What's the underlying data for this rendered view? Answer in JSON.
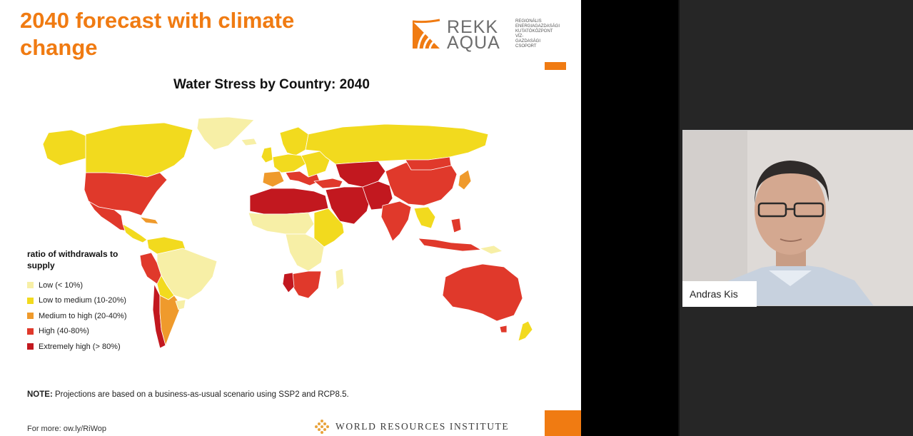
{
  "slide": {
    "title_line1": "2040 forecast with climate",
    "title_line2": "change",
    "logo": {
      "word1": "REKK",
      "word2": "AQUA",
      "small": [
        "Regionális",
        "Energiagazdasági",
        "Kutatóközpont",
        "Víz-",
        "gazdasági",
        "Csoport"
      ]
    },
    "map_title": "Water Stress by Country: 2040",
    "legend": {
      "title": "ratio of withdrawals to supply",
      "items": [
        {
          "label": "Low (< 10%)",
          "color": "#f7efa6"
        },
        {
          "label": "Low to medium (10-20%)",
          "color": "#f2da1e"
        },
        {
          "label": "Medium to high (20-40%)",
          "color": "#ef9a2c"
        },
        {
          "label": "High (40-80%)",
          "color": "#e0392b"
        },
        {
          "label": "Extremely high (> 80%)",
          "color": "#c2181f"
        }
      ]
    },
    "note_bold": "NOTE:",
    "note_text": " Projections are based on a business-as-usual scenario using SSP2 and RCP8.5.",
    "for_more": "For more: ow.ly/RiWop",
    "wri": "WORLD RESOURCES INSTITUTE"
  },
  "participant": {
    "name": "Andras Kis"
  },
  "colors": {
    "accent": "#f07b12"
  }
}
